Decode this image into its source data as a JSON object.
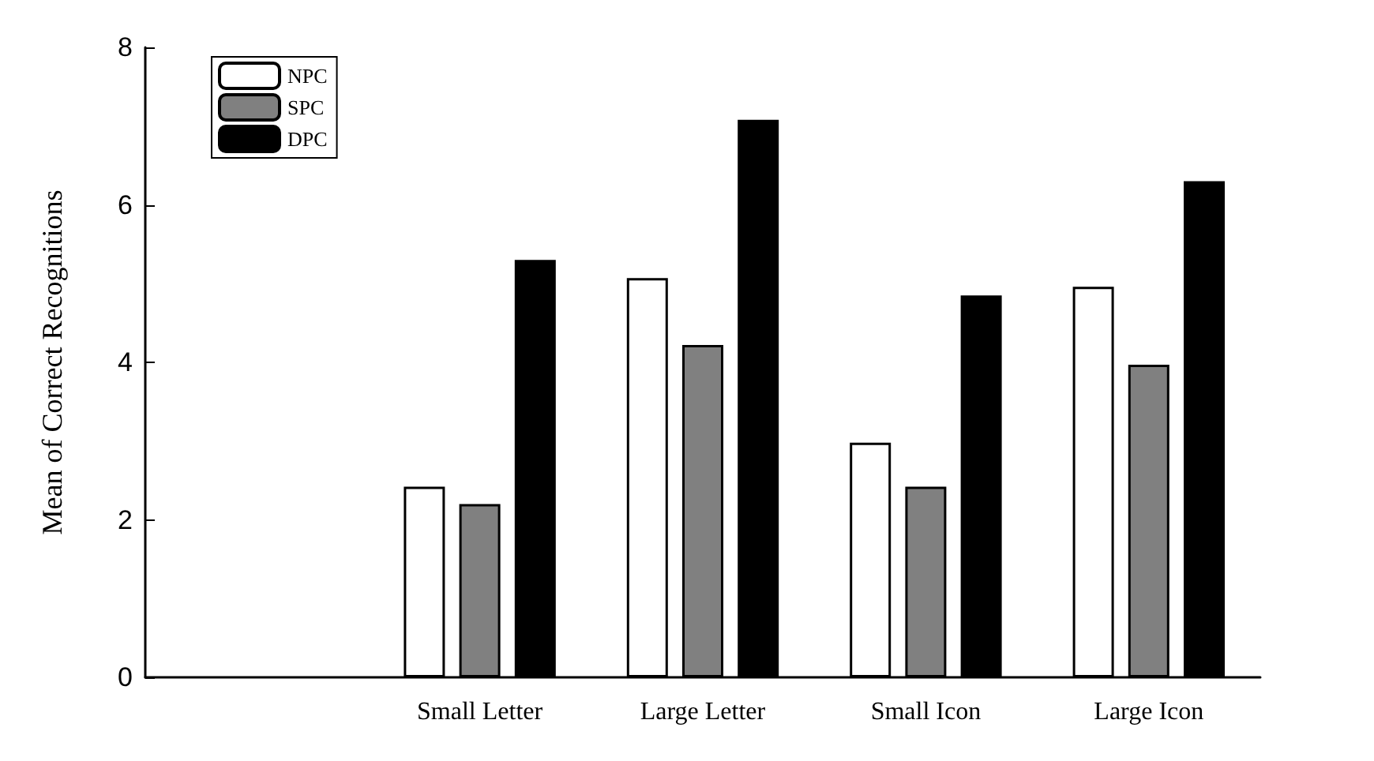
{
  "chart_data": {
    "type": "bar",
    "ylabel": "Mean of Correct Recognitions",
    "categories": [
      null,
      "Small Letter",
      "Large Letter",
      "Small Icon",
      "Large Icon"
    ],
    "series": [
      {
        "name": "NPC",
        "color": "#ffffff",
        "values": [
          null,
          2.42,
          5.07,
          2.98,
          4.96
        ]
      },
      {
        "name": "SPC",
        "color": "#808080",
        "values": [
          null,
          2.2,
          4.22,
          2.42,
          3.97
        ]
      },
      {
        "name": "DPC",
        "color": "#000000",
        "values": [
          null,
          5.3,
          7.08,
          4.85,
          6.3
        ]
      }
    ],
    "ylim": [
      0,
      8
    ],
    "yticks": [
      0,
      2,
      4,
      6,
      8
    ],
    "grid": false,
    "legend": "top left"
  }
}
